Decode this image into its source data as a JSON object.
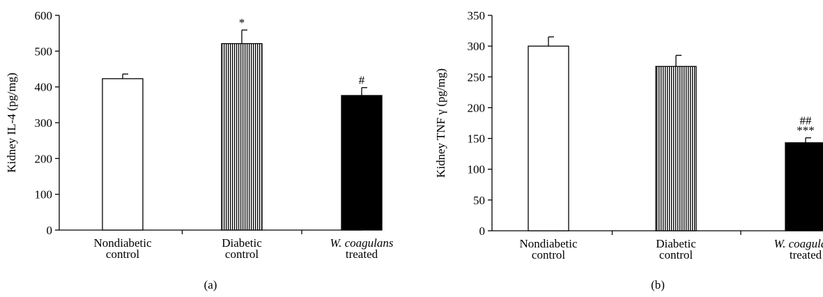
{
  "figure": {
    "panels": [
      "(a)",
      "(b)"
    ]
  },
  "chart_data": [
    {
      "type": "bar",
      "panel_label": "(a)",
      "ylabel": "Kidney IL-4 (pg/mg)",
      "xlabel": "",
      "ylim": [
        0,
        600
      ],
      "yticks": [
        0,
        100,
        200,
        300,
        400,
        500,
        600
      ],
      "grid": false,
      "categories": [
        {
          "lines": [
            "Nondiabetic",
            "control"
          ],
          "italic_first_line": false
        },
        {
          "lines": [
            "Diabetic",
            "control"
          ],
          "italic_first_line": false
        },
        {
          "lines": [
            "W. coagulans",
            "treated"
          ],
          "italic_first_line": true
        }
      ],
      "values": [
        423,
        521,
        376
      ],
      "errors": [
        13,
        38,
        22
      ],
      "fills": [
        "white",
        "vertical-stripes",
        "black"
      ],
      "significance": [
        [],
        [
          "*"
        ],
        [
          "#"
        ]
      ]
    },
    {
      "type": "bar",
      "panel_label": "(b)",
      "ylabel": "Kidney TNF γ (pg/mg)",
      "xlabel": "",
      "ylim": [
        0,
        350
      ],
      "yticks": [
        0,
        50,
        100,
        150,
        200,
        250,
        300,
        350
      ],
      "grid": false,
      "categories": [
        {
          "lines": [
            "Nondiabetic",
            "control"
          ],
          "italic_first_line": false
        },
        {
          "lines": [
            "Diabetic",
            "control"
          ],
          "italic_first_line": false
        },
        {
          "lines": [
            "W. coagulans",
            "treated"
          ],
          "italic_first_line": true
        }
      ],
      "values": [
        300,
        267,
        143
      ],
      "errors": [
        15,
        18,
        8
      ],
      "fills": [
        "white",
        "vertical-stripes",
        "black"
      ],
      "significance": [
        [],
        [],
        [
          "***",
          "##"
        ]
      ]
    }
  ],
  "colors": {
    "axis": "#000000",
    "bar_stroke": "#000000",
    "bar_black": "#000000",
    "bar_white": "#ffffff",
    "stripe": "#000000"
  }
}
